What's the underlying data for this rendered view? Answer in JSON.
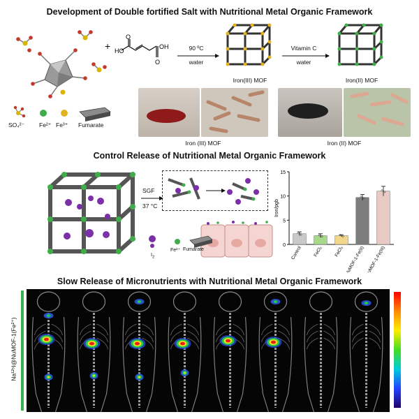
{
  "section1": {
    "title": "Development of Double fortified Salt with Nutritional Metal Organic Framework",
    "plus": "+",
    "reaction1": {
      "temp": "90 ºC",
      "solvent": "water"
    },
    "reaction2": {
      "reagent": "Vitamin C",
      "solvent": "water"
    },
    "mof1_label": "Iron(III) MOF",
    "mof2_label": "Iron(II) MOF",
    "legend": {
      "sulfate": "SO₄²⁻",
      "fe2": "Fe²⁺",
      "fe3": "Fe³⁺",
      "fumarate": "Fumarate"
    },
    "photo1_caption": "Iron (III) MOF",
    "photo2_caption": "Iron (II) MOF",
    "colors": {
      "fe2": "#3fae4a",
      "fe3": "#e3b21f",
      "sulfate_s": "#d9b400",
      "sulfate_o": "#c0392b"
    }
  },
  "section2": {
    "title": "Control Release of Nutritional Metal Organic Framework",
    "sgf": "SGF",
    "temp": "37 °C",
    "legend": {
      "iodine": "I",
      "iodine_sub": "2",
      "fe2": "Fe²⁺",
      "fumarate": "Fumarate"
    },
    "colors": {
      "iodine": "#7b2fa8",
      "fe2": "#3fae4a"
    }
  },
  "chart_data": {
    "type": "bar",
    "ylabel": "Iron/pgb",
    "ylim": [
      0,
      15
    ],
    "yticks": [
      0,
      5,
      10,
      15
    ],
    "categories": [
      "Control",
      "FeCl₂",
      "FeCl₃",
      "NuMOF-1-Fe(II)",
      "NuMOF-1-Fe(III)"
    ],
    "values": [
      2.2,
      1.8,
      1.8,
      9.7,
      11.0
    ],
    "errors": [
      0.4,
      0.4,
      0.2,
      0.6,
      1.0
    ],
    "colors": [
      "#c9c9c9",
      "#a8d88a",
      "#f3d68a",
      "#7d7d7d",
      "#e9c9c4"
    ]
  },
  "section3": {
    "title": "Slow Release of Micronutrients with Nutritional Metal Organic Framework",
    "side_label": "Na¹²⁵I@NuMOF-1(Fe²⁺)",
    "panels": 8,
    "colorbar": [
      "#ff0000",
      "#ff8800",
      "#ffee00",
      "#44dd22",
      "#00ccdd",
      "#2244ff",
      "#22006a"
    ]
  }
}
